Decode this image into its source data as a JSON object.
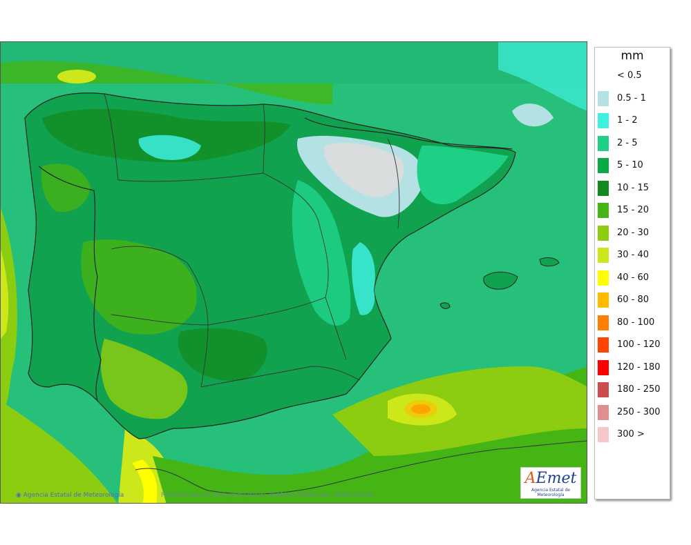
{
  "legend": {
    "title": "mm",
    "items": [
      {
        "label": "< 0.5",
        "color": "#ffffff"
      },
      {
        "label": "0.5 - 1",
        "color": "#b4e1e4"
      },
      {
        "label": "1 - 2",
        "color": "#3ef0e0"
      },
      {
        "label": "2 - 5",
        "color": "#1ecf86"
      },
      {
        "label": "5 - 10",
        "color": "#0aaa47"
      },
      {
        "label": "10 - 15",
        "color": "#138a1e"
      },
      {
        "label": "15 - 20",
        "color": "#45b415"
      },
      {
        "label": "20 - 30",
        "color": "#8ccd12"
      },
      {
        "label": "30 - 40",
        "color": "#cce81a"
      },
      {
        "label": "40 - 60",
        "color": "#fefe00"
      },
      {
        "label": "60 - 80",
        "color": "#ffbb00"
      },
      {
        "label": "80 - 100",
        "color": "#ff7f00"
      },
      {
        "label": "100 - 120",
        "color": "#ff4400"
      },
      {
        "label": "120 - 180",
        "color": "#ff0000"
      },
      {
        "label": "180 - 250",
        "color": "#cc4d4d"
      },
      {
        "label": "250 - 300",
        "color": "#e08f8f"
      },
      {
        "label": "300 >",
        "color": "#f4c8c8"
      }
    ]
  },
  "footer": {
    "agency": "Agencia Estatal de Meteorología",
    "caption": "Precipitación en 24 h (mm)  Inicio: 2020112   Predicción: 2020111300"
  },
  "logo": {
    "mark_a": "A",
    "mark_rest": "Emet",
    "subtitle": "Agencia Estatal de Meteorología"
  },
  "icons": {
    "agency_icon": "globe-icon"
  }
}
